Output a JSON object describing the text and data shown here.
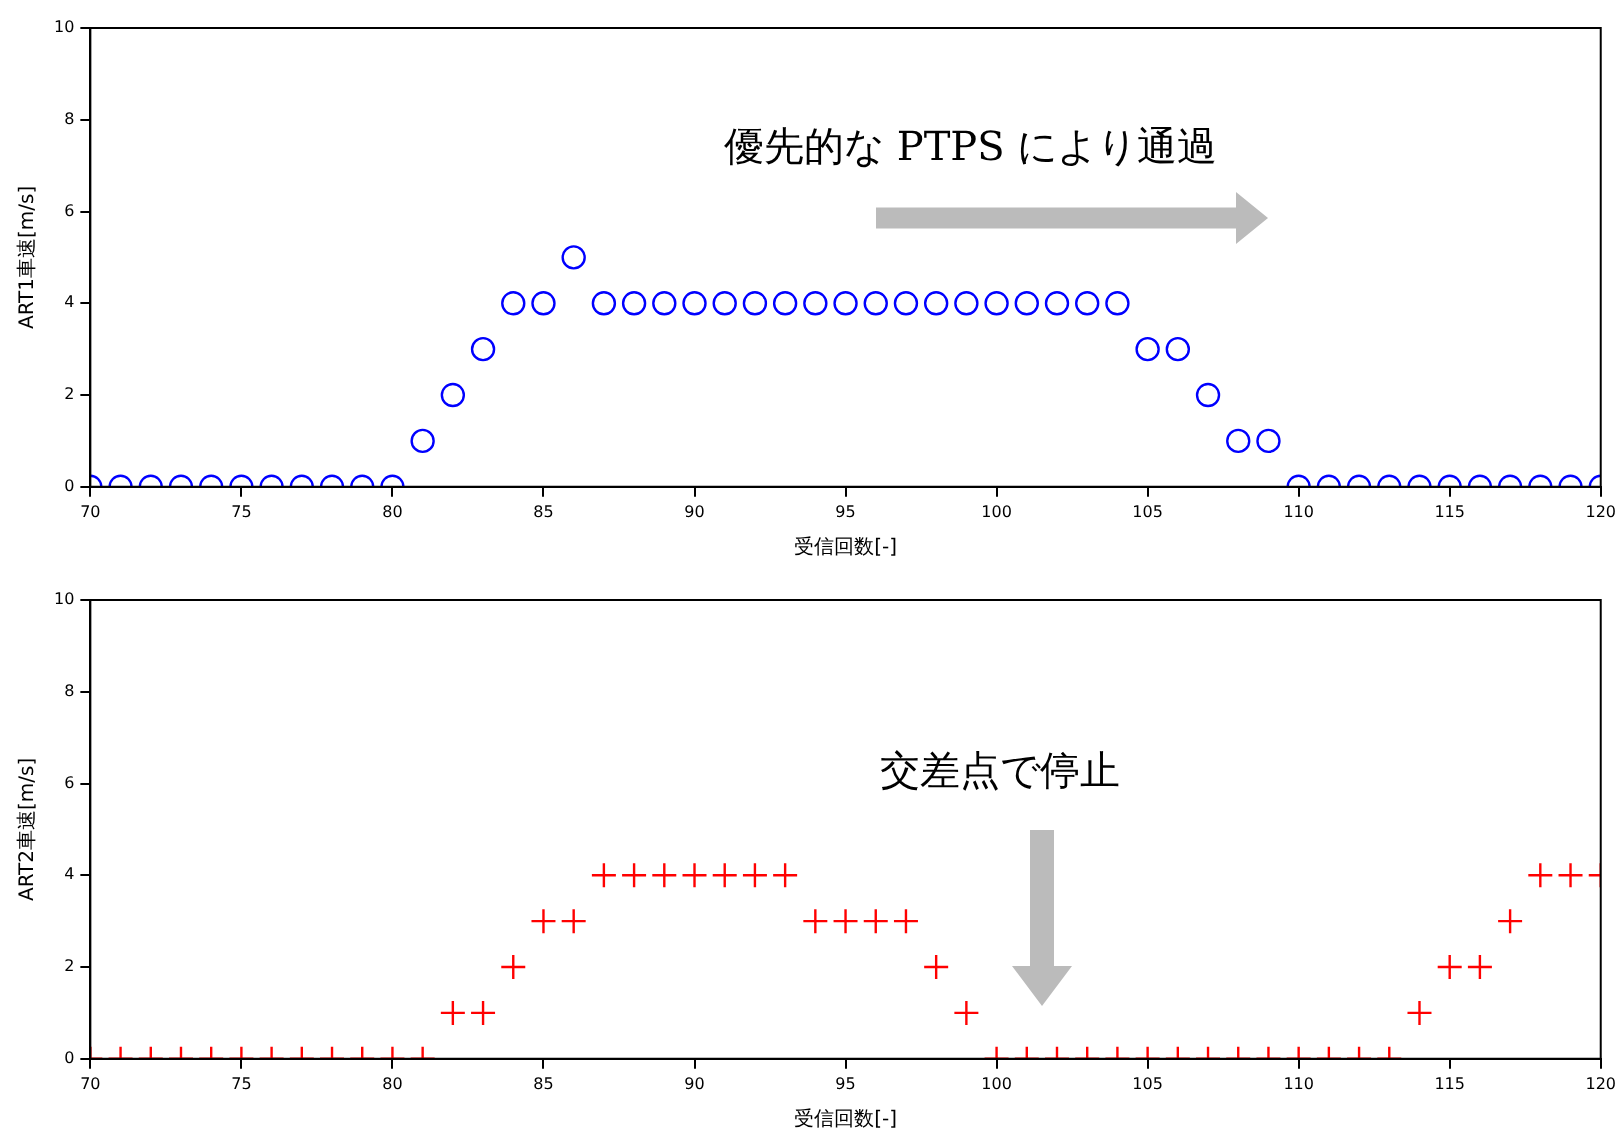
{
  "chart_data": [
    {
      "type": "scatter",
      "xlabel": "受信回数[-]",
      "ylabel": "ART1車速[m/s]",
      "marker": "circle",
      "grid": false,
      "legend": false,
      "xlim": [
        70,
        120
      ],
      "xticks": [
        70,
        75,
        80,
        85,
        90,
        95,
        100,
        105,
        110,
        115,
        120
      ],
      "ylim": [
        0,
        10
      ],
      "yticks": [
        0,
        2,
        4,
        6,
        8,
        10
      ],
      "annotations": [
        "優先的な PTPS により通過"
      ],
      "series": [
        {
          "color": "#0000ff",
          "x": [
            70,
            71,
            72,
            73,
            74,
            75,
            76,
            77,
            78,
            79,
            80,
            81,
            82,
            83,
            84,
            85,
            86,
            87,
            88,
            89,
            90,
            91,
            92,
            93,
            94,
            95,
            96,
            97,
            98,
            99,
            100,
            101,
            102,
            103,
            104,
            105,
            106,
            107,
            108,
            109,
            110,
            111,
            112,
            113,
            114,
            115,
            116,
            117,
            118,
            119,
            120
          ],
          "values": [
            0,
            0,
            0,
            0,
            0,
            0,
            0,
            0,
            0,
            0,
            0,
            1,
            2,
            3,
            4,
            4,
            5,
            4,
            4,
            4,
            4,
            4,
            4,
            4,
            4,
            4,
            4,
            4,
            4,
            4,
            4,
            4,
            4,
            4,
            4,
            3,
            3,
            2,
            1,
            1,
            0,
            0,
            0,
            0,
            0,
            0,
            0,
            0,
            0,
            0,
            0
          ]
        }
      ]
    },
    {
      "type": "scatter",
      "xlabel": "受信回数[-]",
      "ylabel": "ART2車速[m/s]",
      "marker": "cross",
      "grid": false,
      "legend": false,
      "xlim": [
        70,
        120
      ],
      "xticks": [
        70,
        75,
        80,
        85,
        90,
        95,
        100,
        105,
        110,
        115,
        120
      ],
      "ylim": [
        0,
        10
      ],
      "yticks": [
        0,
        2,
        4,
        6,
        8,
        10
      ],
      "annotations": [
        "交差点で停止"
      ],
      "series": [
        {
          "color": "#ff0000",
          "x": [
            70,
            71,
            72,
            73,
            74,
            75,
            76,
            77,
            78,
            79,
            80,
            81,
            82,
            83,
            84,
            85,
            86,
            87,
            88,
            89,
            90,
            91,
            92,
            93,
            94,
            95,
            96,
            97,
            98,
            99,
            100,
            101,
            102,
            103,
            104,
            105,
            106,
            107,
            108,
            109,
            110,
            111,
            112,
            113,
            114,
            115,
            116,
            117,
            118,
            119,
            120
          ],
          "values": [
            0,
            0,
            0,
            0,
            0,
            0,
            0,
            0,
            0,
            0,
            0,
            0,
            1,
            1,
            2,
            3,
            3,
            4,
            4,
            4,
            4,
            4,
            4,
            4,
            3,
            3,
            3,
            3,
            2,
            1,
            0,
            0,
            0,
            0,
            0,
            0,
            0,
            0,
            0,
            0,
            0,
            0,
            0,
            0,
            1,
            2,
            2,
            3,
            4,
            4,
            4
          ]
        }
      ]
    }
  ]
}
